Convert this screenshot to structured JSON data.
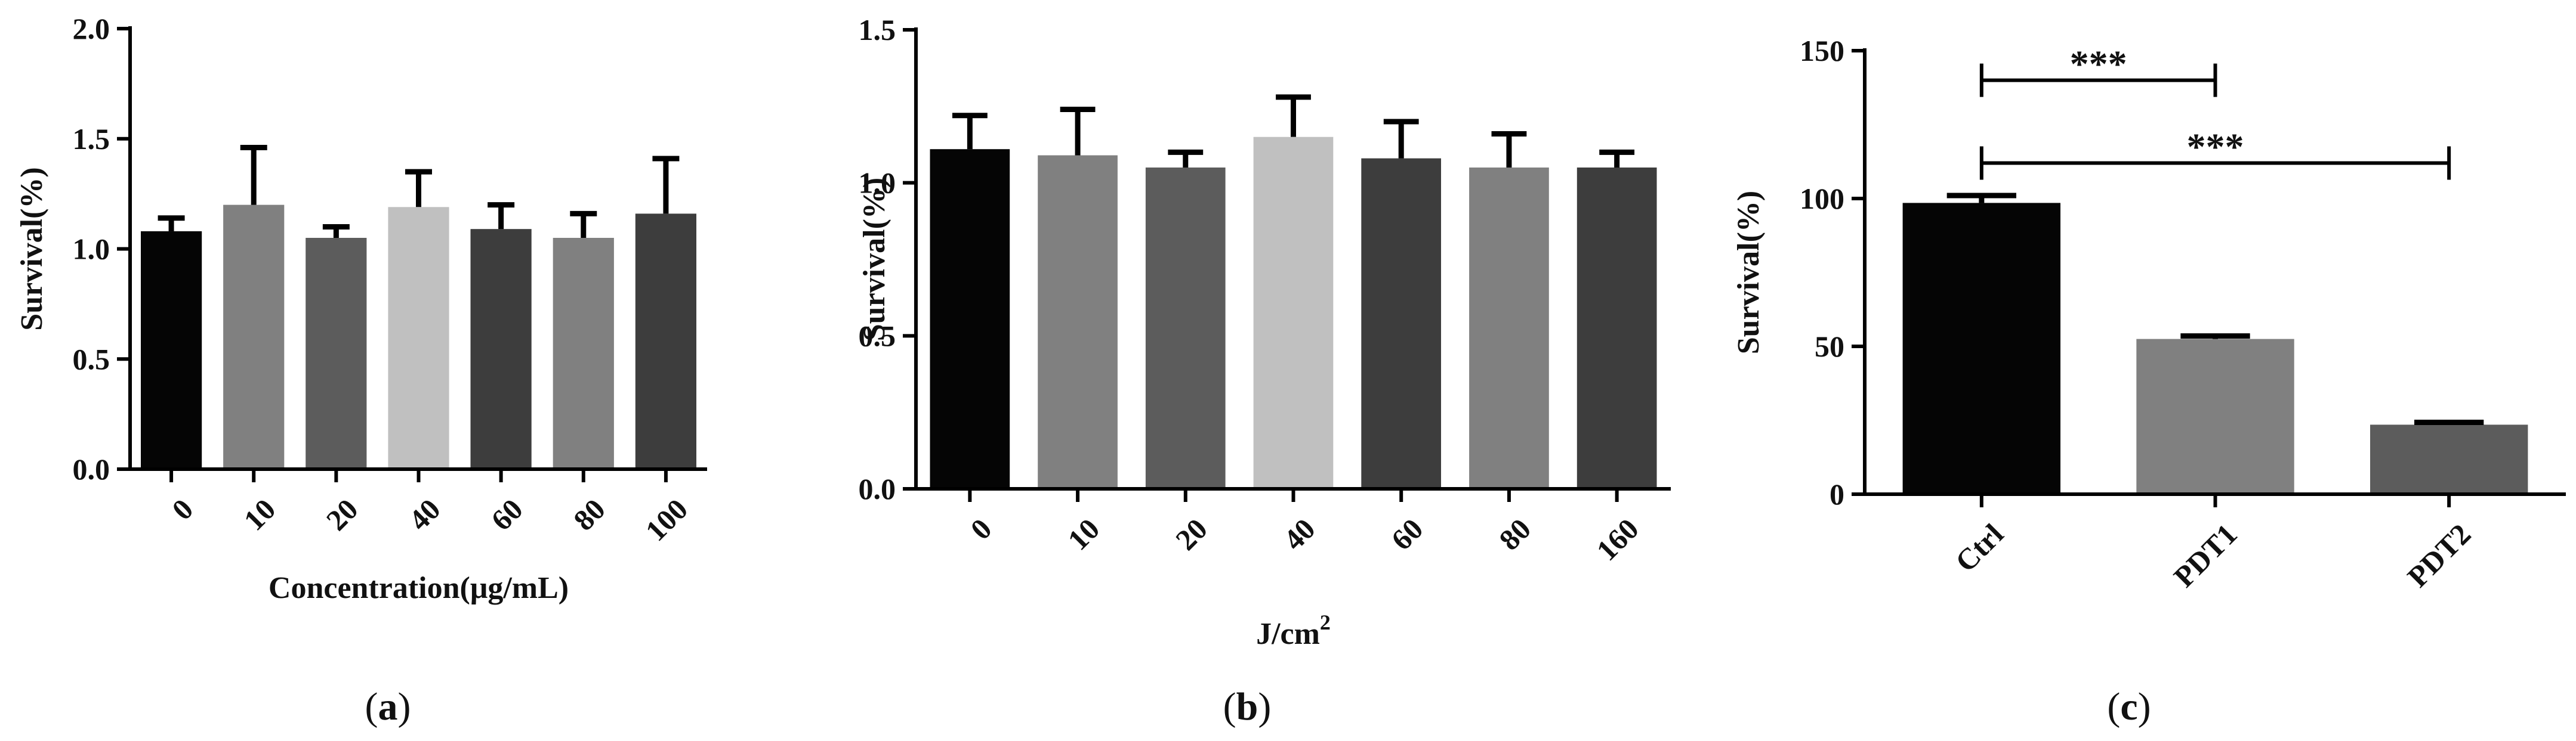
{
  "chart_data": [
    {
      "type": "bar",
      "panel_label": "a",
      "categories": [
        "0",
        "10",
        "20",
        "40",
        "60",
        "80",
        "100"
      ],
      "values": [
        1.08,
        1.2,
        1.05,
        1.19,
        1.09,
        1.05,
        1.16
      ],
      "errors": [
        0.06,
        0.26,
        0.05,
        0.16,
        0.11,
        0.11,
        0.25
      ],
      "colors": [
        "#050505",
        "#808080",
        "#5c5c5c",
        "#c0c0c0",
        "#3d3d3d",
        "#808080",
        "#3d3d3d"
      ],
      "xlabel": "Concentration(μg/mL)",
      "xlabel_sup": "",
      "ylabel": "Survival(%)",
      "ylim": [
        0,
        2.0
      ],
      "yticks": [
        "0.0",
        "0.5",
        "1.0",
        "1.5",
        "2.0"
      ],
      "ytick_values": [
        0,
        0.5,
        1.0,
        1.5,
        2.0
      ],
      "grid": false,
      "significance": []
    },
    {
      "type": "bar",
      "panel_label": "b",
      "categories": [
        "0",
        "10",
        "20",
        "40",
        "60",
        "80",
        "160"
      ],
      "values": [
        1.11,
        1.09,
        1.05,
        1.15,
        1.08,
        1.05,
        1.05
      ],
      "errors": [
        0.11,
        0.15,
        0.05,
        0.13,
        0.12,
        0.11,
        0.05
      ],
      "colors": [
        "#050505",
        "#808080",
        "#5c5c5c",
        "#c0c0c0",
        "#3d3d3d",
        "#808080",
        "#3d3d3d"
      ],
      "xlabel": "J/cm",
      "xlabel_sup": "2",
      "ylabel": "Survival(%)",
      "ylim": [
        0,
        1.5
      ],
      "yticks": [
        "0.0",
        "0.5",
        "1.0",
        "1.5"
      ],
      "ytick_values": [
        0,
        0.5,
        1.0,
        1.5
      ],
      "grid": false,
      "significance": []
    },
    {
      "type": "bar",
      "panel_label": "c",
      "categories": [
        "Ctrl",
        "PDT1",
        "PDT2"
      ],
      "values": [
        98.5,
        52.5,
        23.5
      ],
      "errors": [
        2.5,
        1.0,
        0.8
      ],
      "colors": [
        "#050505",
        "#808080",
        "#5c5c5c"
      ],
      "xlabel": "",
      "xlabel_sup": "",
      "ylabel": "Survival(%)",
      "ylim": [
        0,
        150
      ],
      "yticks": [
        "0",
        "50",
        "100",
        "150"
      ],
      "ytick_values": [
        0,
        50,
        100,
        150
      ],
      "grid": false,
      "significance": [
        {
          "from": 0,
          "to": 1,
          "level": 140,
          "label": "***"
        },
        {
          "from": 0,
          "to": 2,
          "level": 112,
          "label": "***"
        }
      ]
    }
  ]
}
